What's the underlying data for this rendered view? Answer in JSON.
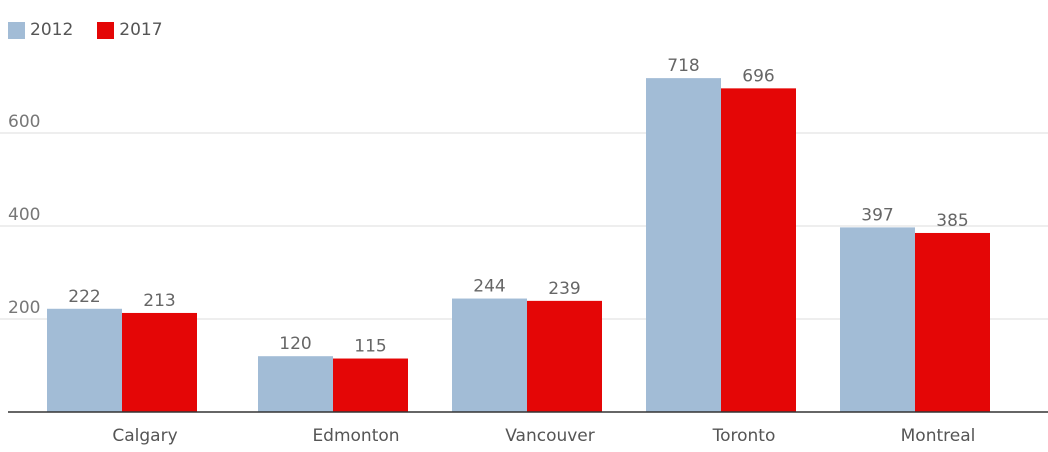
{
  "chart_data": {
    "type": "bar",
    "title": "",
    "xlabel": "",
    "ylabel": "",
    "categories": [
      "Calgary",
      "Edmonton",
      "Vancouver",
      "Toronto",
      "Montreal"
    ],
    "series": [
      {
        "name": "2012",
        "values": [
          222,
          120,
          244,
          718,
          397
        ],
        "color": "#a2bcd6"
      },
      {
        "name": "2017",
        "values": [
          213,
          115,
          239,
          696,
          385
        ],
        "color": "#e40606"
      }
    ],
    "y_ticks": [
      200,
      400,
      600
    ],
    "ylim": [
      0,
      800
    ],
    "grid": true,
    "legend_position": "top-left",
    "data_labels": true
  }
}
